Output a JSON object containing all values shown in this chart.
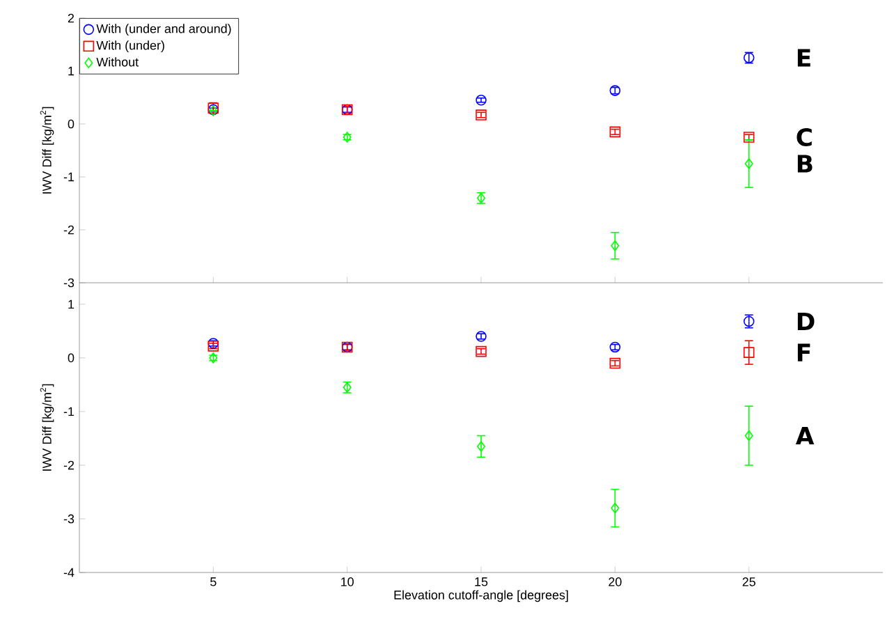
{
  "chart_data": [
    {
      "type": "scatter",
      "ylabel": "IWV Diff [kg/m$^{2}$]",
      "x": [
        5,
        10,
        15,
        20,
        25
      ],
      "xlim": [
        0,
        30
      ],
      "ylim": [
        -3,
        2
      ],
      "xticks": [
        5,
        10,
        15,
        20,
        25
      ],
      "yticks": [
        -3,
        -2,
        -1,
        0,
        1,
        2
      ],
      "tick_labels": "y",
      "legend": "top left",
      "series": [
        {
          "name": "With (under and around)",
          "color": "#0000ff",
          "marker": "circle",
          "values": [
            0.27,
            0.27,
            0.45,
            0.63,
            1.25
          ],
          "errors": [
            0.03,
            0.05,
            0.04,
            0.06,
            0.1
          ]
        },
        {
          "name": "With (under)",
          "color": "#ff0000",
          "marker": "square",
          "values": [
            0.3,
            0.27,
            0.17,
            -0.15,
            -0.25
          ],
          "errors": [
            0.1,
            0.06,
            0.05,
            0.05,
            0.05
          ]
        },
        {
          "name": "Without",
          "color": "#00ff00",
          "marker": "diamond",
          "values": [
            0.25,
            -0.25,
            -1.4,
            -2.3,
            -0.75
          ],
          "errors": [
            null,
            0.05,
            0.1,
            0.25,
            0.45
          ]
        }
      ],
      "annotations": [
        "E",
        "C",
        "B"
      ]
    },
    {
      "type": "scatter",
      "xlabel": "Elevation cutoff-angle [degrees]",
      "ylabel": "IWV Diff [kg/m$^{2}$]",
      "x": [
        5,
        10,
        15,
        20,
        25
      ],
      "xlim": [
        0,
        30
      ],
      "ylim": [
        -4,
        1.4
      ],
      "xticks": [
        5,
        10,
        15,
        20,
        25
      ],
      "yticks": [
        -4,
        -3,
        -2,
        -1,
        0,
        1
      ],
      "series": [
        {
          "color": "#0000ff",
          "marker": "circle",
          "values": [
            0.27,
            0.2,
            0.4,
            0.2,
            0.68
          ],
          "errors": [
            0.05,
            0.05,
            0.05,
            0.05,
            0.12
          ]
        },
        {
          "color": "#ff0000",
          "marker": "square",
          "values": [
            0.22,
            0.2,
            0.12,
            -0.1,
            0.1
          ],
          "errors": [
            0.05,
            0.06,
            0.05,
            0.05,
            0.22
          ]
        },
        {
          "color": "#00ff00",
          "marker": "diamond",
          "values": [
            0,
            -0.55,
            -1.65,
            -2.8,
            -1.45
          ],
          "errors": [
            0.05,
            0.1,
            0.2,
            0.35,
            0.55
          ]
        }
      ],
      "annotations": [
        "D",
        "F",
        "A"
      ]
    }
  ]
}
